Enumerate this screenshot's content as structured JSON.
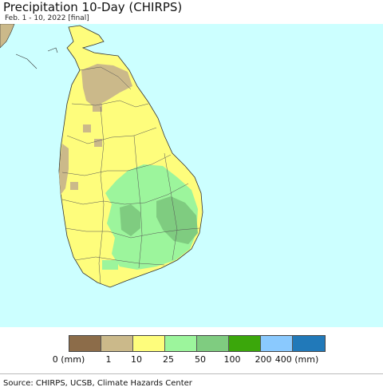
{
  "header": {
    "title": "Precipitation 10-Day (CHIRPS)",
    "subtitle": "Feb. 1 - 10, 2022 [final]"
  },
  "map": {
    "sea_color": "#ccffff",
    "land_colors": {
      "very_dry": "#cbb98a",
      "dry": "#fefd7c",
      "moderate": "#9cf59c",
      "wet": "#7fcc80"
    }
  },
  "legend": {
    "colors": [
      "#8c6c49",
      "#cbb98a",
      "#fefd7c",
      "#9cf59c",
      "#7fcc80",
      "#3ba70b",
      "#8ac9fe",
      "#2179b9"
    ],
    "ticks": [
      "0 (mm)",
      "1",
      "10",
      "25",
      "50",
      "100",
      "200",
      "400 (mm)"
    ]
  },
  "footer": {
    "source": "Source: CHIRPS, UCSB, Climate Hazards Center"
  }
}
